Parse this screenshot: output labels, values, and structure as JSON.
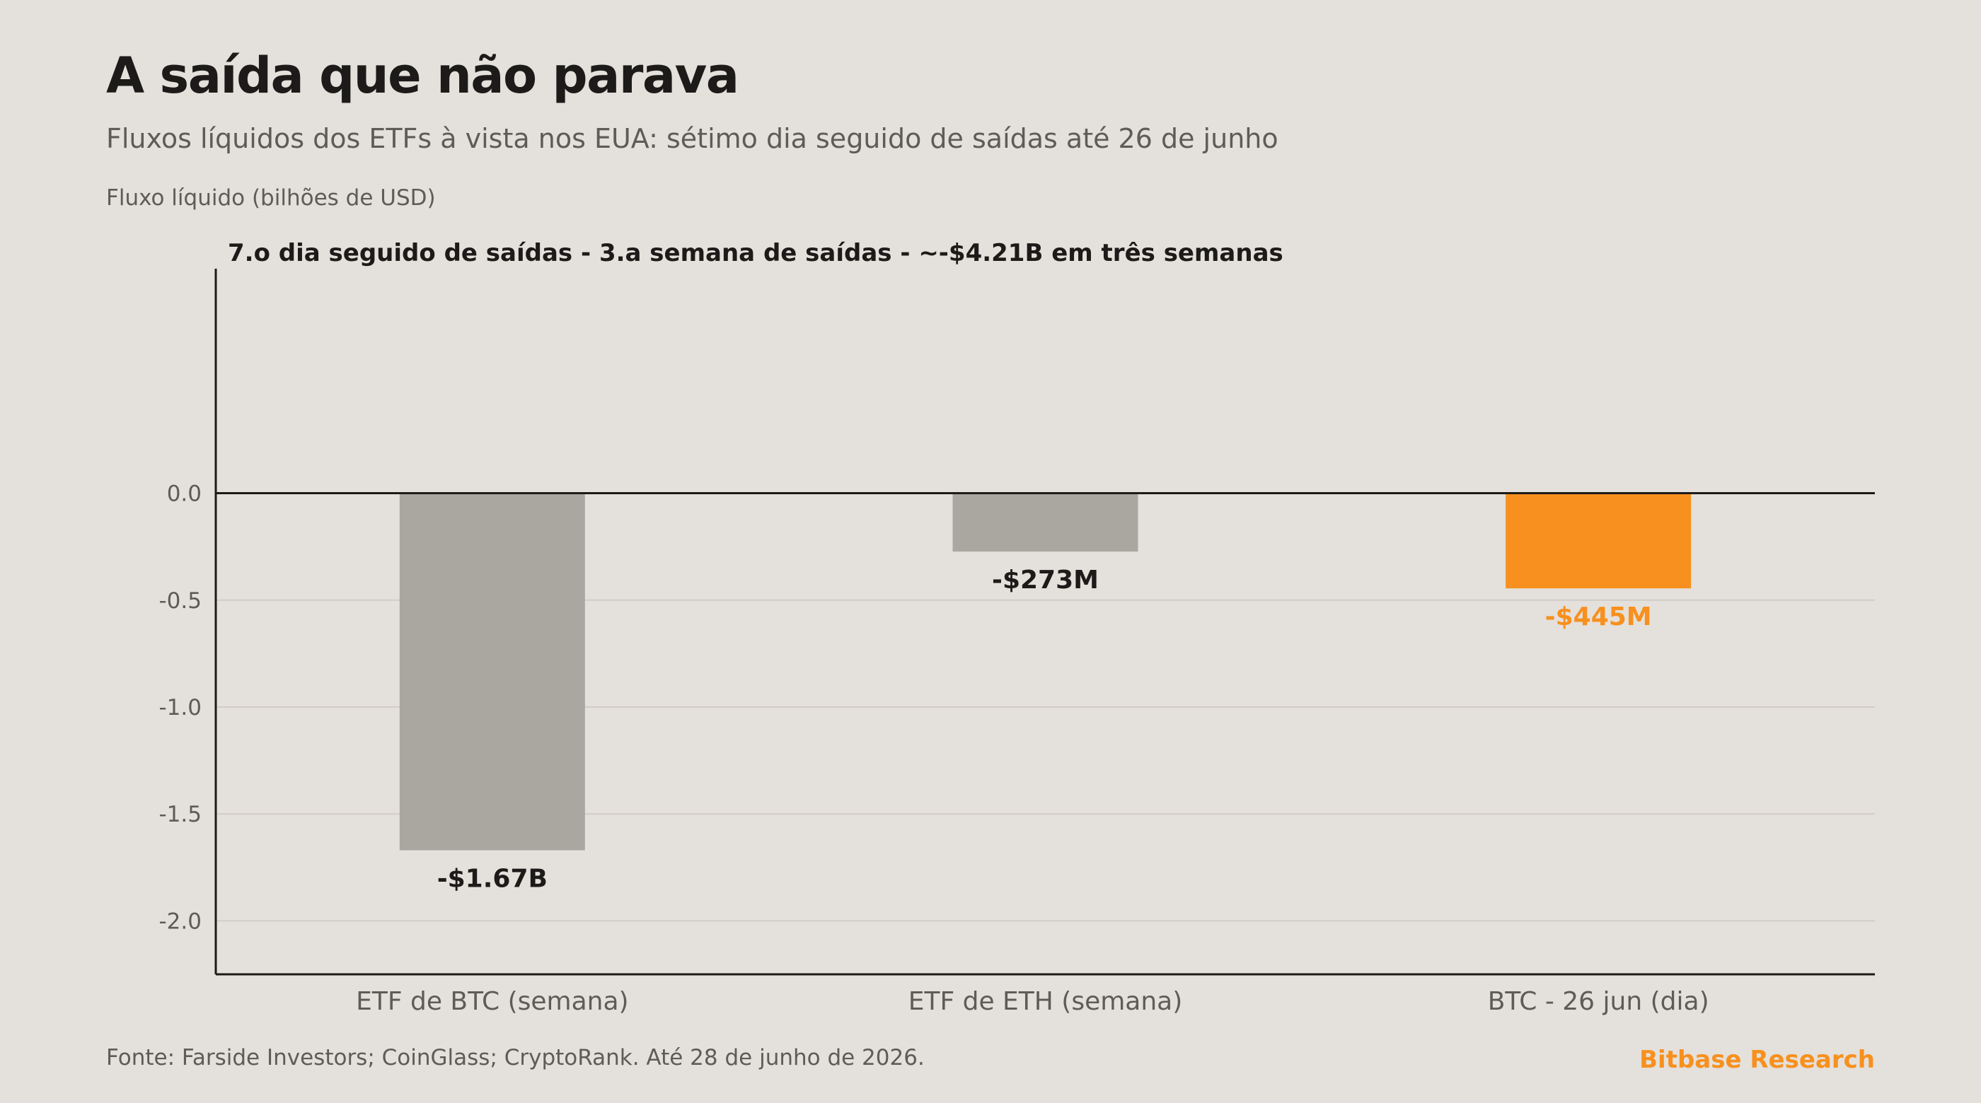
{
  "title": "A saída que não parava",
  "subtitle": "Fluxos líquidos dos ETFs à vista nos EUA: sétimo dia seguido de saídas até 26 de junho",
  "source": "Fonte: Farside Investors; CoinGlass; CryptoRank. Até 28 de junho de 2026.",
  "brand": "Bitbase Research",
  "colors": {
    "background": "#e4e0db",
    "bar_default": "#aaa6a0",
    "bar_highlight": "#f7901e",
    "text_dark": "#1c1b19",
    "text_muted": "#5f5b57",
    "grid": "#d1ccc6"
  },
  "chart_data": {
    "type": "bar",
    "ylabel": "Fluxo líquido (bilhões de USD)",
    "annotation": "7.o dia seguido de saídas - 3.a semana de saídas - ~-$4.21B em três semanas",
    "categories": [
      "ETF de BTC (semana)",
      "ETF de ETH (semana)",
      "BTC - 26 jun (dia)"
    ],
    "values": [
      -1.67,
      -0.273,
      -0.445
    ],
    "value_labels": [
      "-$1.67B",
      "-$273M",
      "-$445M"
    ],
    "highlight_index": 2,
    "yticks": [
      0.0,
      -0.5,
      -1.0,
      -1.5,
      -2.0
    ],
    "ytick_labels": [
      "0.0",
      "-0.5",
      "-1.0",
      "-1.5",
      "-2.0"
    ],
    "ylim": [
      -2.25,
      1.05
    ],
    "grid": true,
    "legend": "none"
  }
}
